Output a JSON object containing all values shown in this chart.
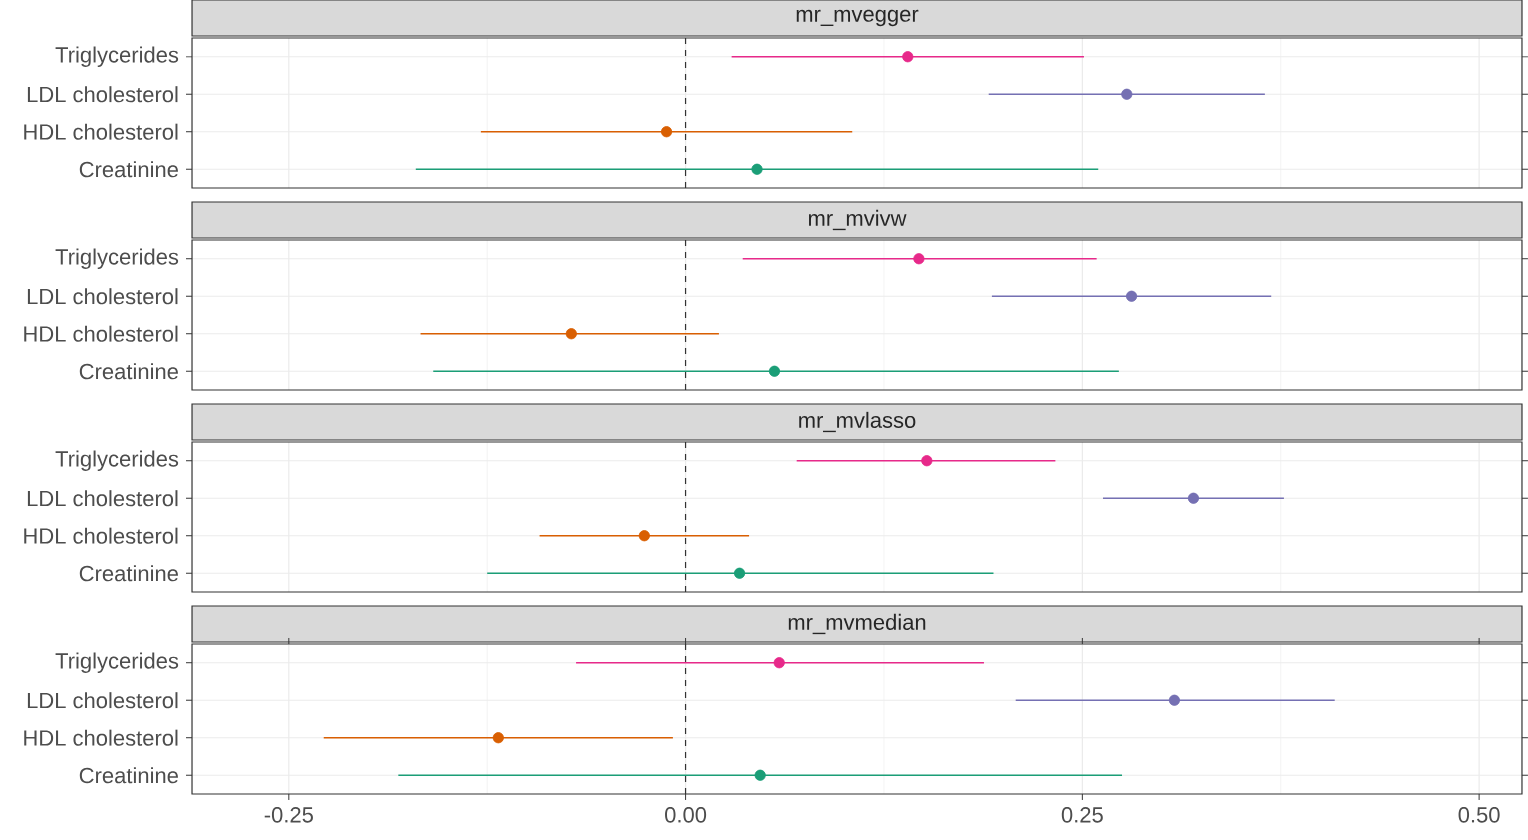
{
  "chart_data": [
    {
      "type": "scatter",
      "title": "mr_mvegger",
      "orientation": "horizontal",
      "categories": [
        "Triglycerides",
        "LDL cholesterol",
        "HDL cholesterol",
        "Creatinine"
      ],
      "values": [
        0.14,
        0.278,
        -0.012,
        0.045
      ],
      "errors": [
        [
          0.029,
          0.251
        ],
        [
          0.191,
          0.365
        ],
        [
          -0.129,
          0.105
        ],
        [
          -0.17,
          0.26
        ]
      ],
      "colors": [
        "#e7298a",
        "#7570b3",
        "#d95f02",
        "#1b9e77"
      ],
      "xlim": [
        -0.311,
        0.527
      ],
      "xticks": [
        {
          "value": -0.25,
          "label": null
        },
        {
          "value": 0,
          "label": null
        },
        {
          "value": 0.25,
          "label": null
        },
        {
          "value": 0.5,
          "label": null
        }
      ],
      "tick_labels": "y",
      "grid": true,
      "marker": "circle",
      "ref_lines": [
        {
          "axis": "x",
          "value": 0,
          "line_style": "dashed",
          "color": "#333333"
        }
      ]
    },
    {
      "type": "scatter",
      "title": "mr_mvivw",
      "orientation": "horizontal",
      "categories": [
        "Triglycerides",
        "LDL cholesterol",
        "HDL cholesterol",
        "Creatinine"
      ],
      "values": [
        0.147,
        0.281,
        -0.072,
        0.056
      ],
      "errors": [
        [
          0.036,
          0.259
        ],
        [
          0.193,
          0.369
        ],
        [
          -0.167,
          0.021
        ],
        [
          -0.159,
          0.273
        ]
      ],
      "colors": [
        "#e7298a",
        "#7570b3",
        "#d95f02",
        "#1b9e77"
      ],
      "xlim": [
        -0.311,
        0.527
      ],
      "xticks": [
        {
          "value": -0.25,
          "label": null
        },
        {
          "value": 0,
          "label": null
        },
        {
          "value": 0.25,
          "label": null
        },
        {
          "value": 0.5,
          "label": null
        }
      ],
      "tick_labels": "y",
      "grid": true,
      "marker": "circle",
      "ref_lines": [
        {
          "axis": "x",
          "value": 0,
          "line_style": "dashed",
          "color": "#333333"
        }
      ]
    },
    {
      "type": "scatter",
      "title": "mr_mvlasso",
      "orientation": "horizontal",
      "categories": [
        "Triglycerides",
        "LDL cholesterol",
        "HDL cholesterol",
        "Creatinine"
      ],
      "values": [
        0.152,
        0.32,
        -0.026,
        0.034
      ],
      "errors": [
        [
          0.07,
          0.233
        ],
        [
          0.263,
          0.377
        ],
        [
          -0.092,
          0.04
        ],
        [
          -0.125,
          0.194
        ]
      ],
      "colors": [
        "#e7298a",
        "#7570b3",
        "#d95f02",
        "#1b9e77"
      ],
      "xlim": [
        -0.311,
        0.527
      ],
      "xticks": [
        {
          "value": -0.25,
          "label": null
        },
        {
          "value": 0,
          "label": null
        },
        {
          "value": 0.25,
          "label": null
        },
        {
          "value": 0.5,
          "label": null
        }
      ],
      "tick_labels": "y",
      "grid": true,
      "marker": "circle",
      "ref_lines": [
        {
          "axis": "x",
          "value": 0,
          "line_style": "dashed",
          "color": "#333333"
        }
      ]
    },
    {
      "type": "scatter",
      "title": "mr_mvmedian",
      "orientation": "horizontal",
      "categories": [
        "Triglycerides",
        "LDL cholesterol",
        "HDL cholesterol",
        "Creatinine"
      ],
      "values": [
        0.059,
        0.308,
        -0.118,
        0.047
      ],
      "errors": [
        [
          -0.069,
          0.188
        ],
        [
          0.208,
          0.409
        ],
        [
          -0.228,
          -0.008
        ],
        [
          -0.181,
          0.275
        ]
      ],
      "colors": [
        "#e7298a",
        "#7570b3",
        "#d95f02",
        "#1b9e77"
      ],
      "xlim": [
        -0.311,
        0.527
      ],
      "xticks": [
        {
          "value": -0.25,
          "label": "-0.25"
        },
        {
          "value": 0,
          "label": "0.00"
        },
        {
          "value": 0.25,
          "label": "0.25"
        },
        {
          "value": 0.5,
          "label": "0.50"
        }
      ],
      "grid": true,
      "marker": "circle",
      "ref_lines": [
        {
          "axis": "x",
          "value": 0,
          "line_style": "dashed",
          "color": "#333333"
        }
      ]
    }
  ]
}
